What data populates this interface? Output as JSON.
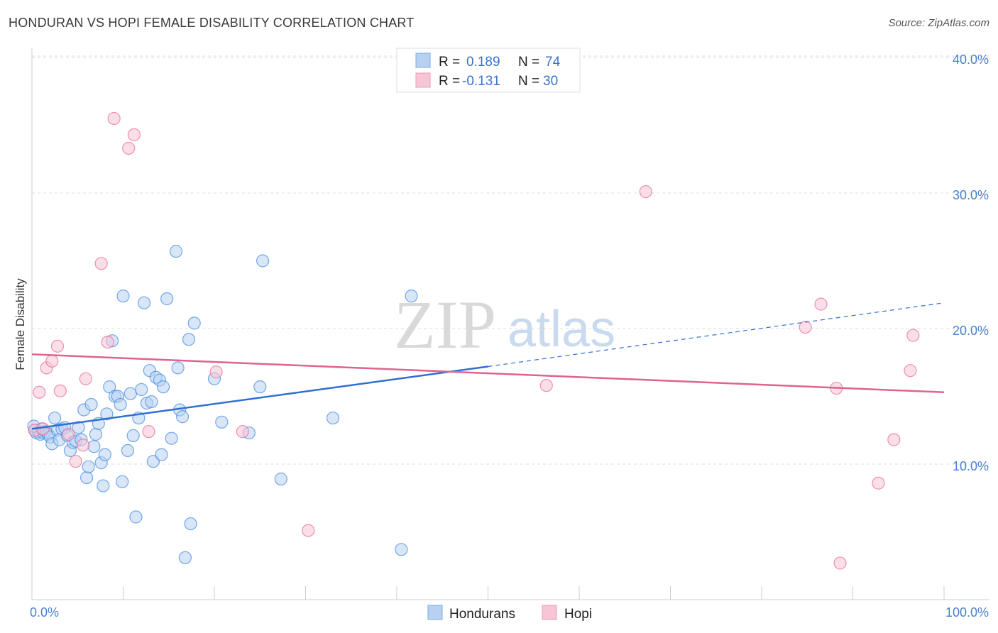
{
  "title": "HONDURAN VS HOPI FEMALE DISABILITY CORRELATION CHART",
  "source": "Source: ZipAtlas.com",
  "watermark": {
    "zip": "ZIP",
    "atlas": "atlas"
  },
  "colors": {
    "blue": "#4a8ee0",
    "blue_fill": "#b8d1f3",
    "pink": "#e86f9a",
    "pink_fill": "#f7c5d5",
    "tick": "#4a7fd1",
    "grid": "#dddddd"
  },
  "legend": {
    "rows": [
      {
        "r_label": "R =",
        "r_value": "0.189",
        "n_label": "N =",
        "n_value": "74"
      },
      {
        "r_label": "R =",
        "r_value": "-0.131",
        "n_label": "N =",
        "n_value": "30"
      }
    ]
  },
  "bottom_legend": {
    "hondurans": "Hondurans",
    "hopi": "Hopi"
  },
  "chart_data": {
    "type": "scatter",
    "title": "HONDURAN VS HOPI FEMALE DISABILITY CORRELATION CHART",
    "xlabel": "",
    "ylabel": "Female Disability",
    "xlim": [
      0,
      100
    ],
    "ylim": [
      0,
      42
    ],
    "x_tick_labels": {
      "min": "0.0%",
      "max": "100.0%"
    },
    "y_ticks": [
      {
        "value": 10,
        "label": "10.0%"
      },
      {
        "value": 20,
        "label": "20.0%"
      },
      {
        "value": 30,
        "label": "30.0%"
      },
      {
        "value": 40,
        "label": "40.0%"
      }
    ],
    "series": [
      {
        "name": "Hondurans",
        "color": "#4a8ee0",
        "points": [
          [
            0.3,
            12.5
          ],
          [
            0.5,
            12.3
          ],
          [
            0.7,
            12.4
          ],
          [
            0.9,
            12.2
          ],
          [
            1.1,
            12.6
          ],
          [
            1.3,
            12.3
          ],
          [
            1.5,
            12.4
          ],
          [
            1.8,
            12.2
          ],
          [
            2.0,
            12.0
          ],
          [
            2.2,
            11.5
          ],
          [
            2.5,
            13.4
          ],
          [
            2.8,
            12.5
          ],
          [
            3.0,
            11.8
          ],
          [
            3.3,
            12.6
          ],
          [
            3.6,
            12.7
          ],
          [
            3.9,
            12.1
          ],
          [
            4.2,
            11.0
          ],
          [
            4.5,
            11.6
          ],
          [
            4.8,
            11.7
          ],
          [
            5.1,
            12.7
          ],
          [
            5.4,
            11.8
          ],
          [
            5.7,
            14.0
          ],
          [
            6.0,
            9.0
          ],
          [
            6.2,
            9.8
          ],
          [
            6.5,
            14.4
          ],
          [
            6.8,
            11.3
          ],
          [
            7.0,
            12.2
          ],
          [
            7.3,
            13.0
          ],
          [
            7.6,
            10.1
          ],
          [
            7.8,
            8.4
          ],
          [
            8.0,
            10.7
          ],
          [
            8.2,
            13.7
          ],
          [
            8.5,
            15.7
          ],
          [
            8.8,
            19.1
          ],
          [
            9.1,
            15.0
          ],
          [
            9.4,
            15.0
          ],
          [
            9.7,
            14.4
          ],
          [
            9.9,
            8.7
          ],
          [
            10.0,
            22.4
          ],
          [
            10.5,
            11.0
          ],
          [
            10.8,
            15.2
          ],
          [
            11.1,
            12.1
          ],
          [
            11.4,
            6.1
          ],
          [
            11.7,
            13.4
          ],
          [
            12.0,
            15.5
          ],
          [
            12.3,
            21.9
          ],
          [
            12.6,
            14.5
          ],
          [
            12.9,
            16.9
          ],
          [
            13.1,
            14.6
          ],
          [
            13.3,
            10.2
          ],
          [
            13.6,
            16.4
          ],
          [
            14.0,
            16.2
          ],
          [
            14.2,
            10.7
          ],
          [
            14.4,
            15.7
          ],
          [
            14.8,
            22.2
          ],
          [
            15.3,
            11.9
          ],
          [
            15.8,
            25.7
          ],
          [
            16.0,
            17.1
          ],
          [
            16.2,
            14.0
          ],
          [
            16.5,
            13.5
          ],
          [
            16.8,
            3.1
          ],
          [
            17.2,
            19.2
          ],
          [
            17.4,
            5.6
          ],
          [
            17.8,
            20.4
          ],
          [
            20.0,
            16.3
          ],
          [
            20.8,
            13.1
          ],
          [
            23.8,
            12.3
          ],
          [
            25.0,
            15.7
          ],
          [
            25.3,
            25.0
          ],
          [
            27.3,
            8.9
          ],
          [
            33.0,
            13.4
          ],
          [
            40.5,
            3.7
          ],
          [
            41.6,
            22.4
          ],
          [
            0.2,
            12.8
          ]
        ]
      },
      {
        "name": "Hopi",
        "color": "#e86f9a",
        "points": [
          [
            0.3,
            12.5
          ],
          [
            0.8,
            15.3
          ],
          [
            1.6,
            17.1
          ],
          [
            2.2,
            17.6
          ],
          [
            2.8,
            18.7
          ],
          [
            3.1,
            15.4
          ],
          [
            4.0,
            12.2
          ],
          [
            4.8,
            10.2
          ],
          [
            5.6,
            11.4
          ],
          [
            5.9,
            16.3
          ],
          [
            7.6,
            24.8
          ],
          [
            8.3,
            19.0
          ],
          [
            9.0,
            35.5
          ],
          [
            10.6,
            33.3
          ],
          [
            11.2,
            34.3
          ],
          [
            12.8,
            12.4
          ],
          [
            20.2,
            16.8
          ],
          [
            23.1,
            12.4
          ],
          [
            30.3,
            5.1
          ],
          [
            56.4,
            15.8
          ],
          [
            67.3,
            30.1
          ],
          [
            84.8,
            20.1
          ],
          [
            86.5,
            21.8
          ],
          [
            88.2,
            15.6
          ],
          [
            88.6,
            2.7
          ],
          [
            92.8,
            8.6
          ],
          [
            94.5,
            11.8
          ],
          [
            96.3,
            16.9
          ],
          [
            96.6,
            19.5
          ],
          [
            1.2,
            12.6
          ]
        ]
      }
    ],
    "trend_lines": [
      {
        "series": "Hondurans",
        "x0": 0,
        "y0": 12.6,
        "x1": 50,
        "y1": 17.2,
        "dashed_to_x": 100,
        "dashed_to_y": 21.9
      },
      {
        "series": "Hopi",
        "x0": 0,
        "y0": 18.1,
        "x1": 100,
        "y1": 15.3
      }
    ]
  }
}
